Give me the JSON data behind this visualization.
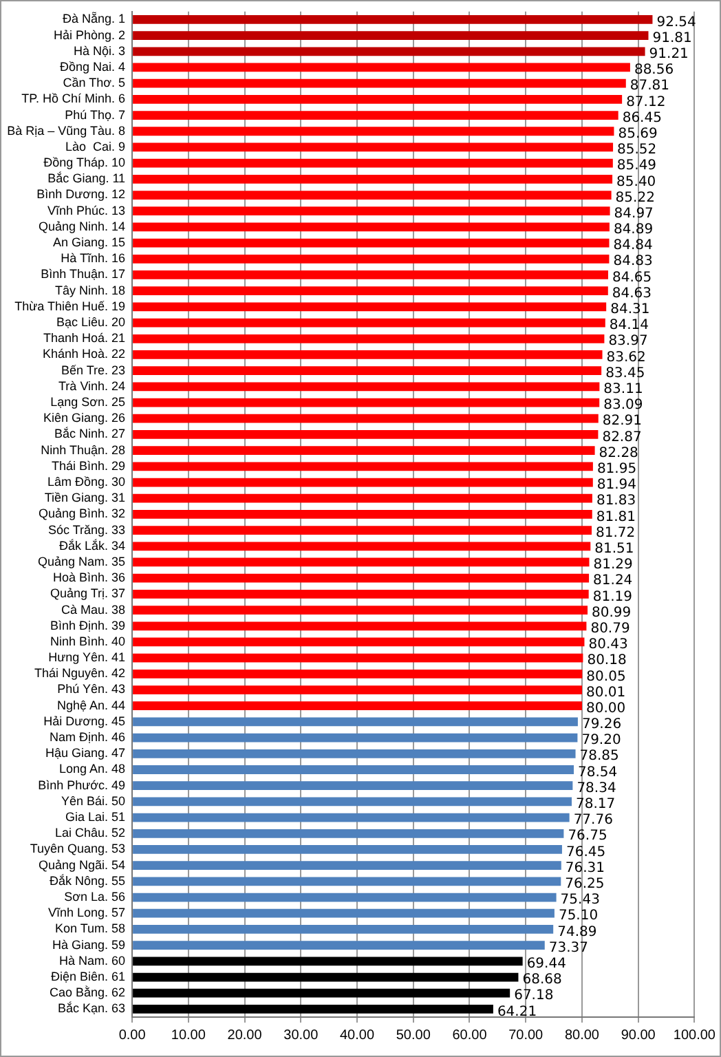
{
  "chart_data": {
    "type": "bar",
    "orientation": "horizontal",
    "grid": "x",
    "categories": [
      "Đà Nẵng. 1",
      "Hải Phòng. 2",
      "Hà Nội. 3",
      "Đồng Nai. 4",
      "Cần Thơ. 5",
      "TP. Hồ Chí Minh. 6",
      "Phú Thọ. 7",
      "Bà Rịa – Vũng Tàu. 8",
      "Lào  Cai. 9",
      "Đồng Tháp. 10",
      "Bắc Giang. 11",
      "Bình Dương. 12",
      "Vĩnh Phúc. 13",
      "Quảng Ninh. 14",
      "An Giang. 15",
      "Hà Tĩnh. 16",
      "Bình Thuận. 17",
      "Tây Ninh. 18",
      "Thừa Thiên Huế. 19",
      "Bạc Liêu. 20",
      "Thanh Hoá. 21",
      "Khánh Hoà. 22",
      "Bến Tre. 23",
      "Trà Vinh. 24",
      "Lạng Sơn. 25",
      "Kiên Giang. 26",
      "Bắc Ninh. 27",
      "Ninh Thuận. 28",
      "Thái Bình. 29",
      "Lâm Đồng. 30",
      "Tiền Giang. 31",
      "Quảng Bình. 32",
      "Sóc Trăng. 33",
      "Đắk Lắk. 34",
      "Quảng Nam. 35",
      "Hoà Bình. 36",
      "Quảng Trị. 37",
      "Cà Mau. 38",
      "Bình Định. 39",
      "Ninh Bình. 40",
      "Hưng Yên. 41",
      "Thái Nguyên. 42",
      "Phú Yên. 43",
      "Nghệ An. 44",
      "Hải Dương. 45",
      "Nam Định. 46",
      "Hậu Giang. 47",
      "Long An. 48",
      "Bình Phước. 49",
      "Yên Bái. 50",
      "Gia Lai. 51",
      "Lai Châu. 52",
      "Tuyên Quang. 53",
      "Quảng Ngãi. 54",
      "Đắk Nông. 55",
      "Sơn La. 56",
      "Vĩnh Long. 57",
      "Kon Tum. 58",
      "Hà Giang. 59",
      "Hà Nam. 60",
      "Điện Biên. 61",
      "Cao Bằng. 62",
      "Bắc Kạn. 63"
    ],
    "values": [
      92.54,
      91.81,
      91.21,
      88.56,
      87.81,
      87.12,
      86.45,
      85.69,
      85.52,
      85.49,
      85.4,
      85.22,
      84.97,
      84.89,
      84.84,
      84.83,
      84.65,
      84.63,
      84.31,
      84.14,
      83.97,
      83.62,
      83.45,
      83.11,
      83.09,
      82.91,
      82.87,
      82.28,
      81.95,
      81.94,
      81.83,
      81.81,
      81.72,
      81.51,
      81.29,
      81.24,
      81.19,
      80.99,
      80.79,
      80.43,
      80.18,
      80.05,
      80.01,
      80.0,
      79.26,
      79.2,
      78.85,
      78.54,
      78.34,
      78.17,
      77.76,
      76.75,
      76.45,
      76.31,
      76.25,
      75.43,
      75.1,
      74.89,
      73.37,
      69.44,
      68.68,
      67.18,
      64.21
    ],
    "value_labels": [
      "92.54",
      "91.81",
      "91.21",
      "88.56",
      "87.81",
      "87.12",
      "86.45",
      "85.69",
      "85.52",
      "85.49",
      "85.40",
      "85.22",
      "84.97",
      "84.89",
      "84.84",
      "84.83",
      "84.65",
      "84.63",
      "84.31",
      "84.14",
      "83.97",
      "83.62",
      "83.45",
      "83.11",
      "83.09",
      "82.91",
      "82.87",
      "82.28",
      "81.95",
      "81.94",
      "81.83",
      "81.81",
      "81.72",
      "81.51",
      "81.29",
      "81.24",
      "81.19",
      "80.99",
      "80.79",
      "80.43",
      "80.18",
      "80.05",
      "80.01",
      "80.00",
      "79.26",
      "79.20",
      "78.85",
      "78.54",
      "78.34",
      "78.17",
      "77.76",
      "76.75",
      "76.45",
      "76.31",
      "76.25",
      "75.43",
      "75.10",
      "74.89",
      "73.37",
      "69.44",
      "68.68",
      "67.18",
      "64.21"
    ],
    "colors": [
      "#c00000",
      "#c00000",
      "#c00000",
      "#ff0000",
      "#ff0000",
      "#ff0000",
      "#ff0000",
      "#ff0000",
      "#ff0000",
      "#ff0000",
      "#ff0000",
      "#ff0000",
      "#ff0000",
      "#ff0000",
      "#ff0000",
      "#ff0000",
      "#ff0000",
      "#ff0000",
      "#ff0000",
      "#ff0000",
      "#ff0000",
      "#ff0000",
      "#ff0000",
      "#ff0000",
      "#ff0000",
      "#ff0000",
      "#ff0000",
      "#ff0000",
      "#ff0000",
      "#ff0000",
      "#ff0000",
      "#ff0000",
      "#ff0000",
      "#ff0000",
      "#ff0000",
      "#ff0000",
      "#ff0000",
      "#ff0000",
      "#ff0000",
      "#ff0000",
      "#ff0000",
      "#ff0000",
      "#ff0000",
      "#ff0000",
      "#4f81bd",
      "#4f81bd",
      "#4f81bd",
      "#4f81bd",
      "#4f81bd",
      "#4f81bd",
      "#4f81bd",
      "#4f81bd",
      "#4f81bd",
      "#4f81bd",
      "#4f81bd",
      "#4f81bd",
      "#4f81bd",
      "#4f81bd",
      "#4f81bd",
      "#000000",
      "#000000",
      "#000000",
      "#000000"
    ],
    "xlim": [
      0,
      100
    ],
    "xticks": [
      {
        "value": 0,
        "label": "0.00"
      },
      {
        "value": 10,
        "label": "10.00"
      },
      {
        "value": 20,
        "label": "20.00"
      },
      {
        "value": 30,
        "label": "30.00"
      },
      {
        "value": 40,
        "label": "40.00"
      },
      {
        "value": 50,
        "label": "50.00"
      },
      {
        "value": 60,
        "label": "60.00"
      },
      {
        "value": 70,
        "label": "70.00"
      },
      {
        "value": 80,
        "label": "80.00"
      },
      {
        "value": 90,
        "label": "90.00"
      },
      {
        "value": 100,
        "label": "100.00"
      }
    ]
  }
}
